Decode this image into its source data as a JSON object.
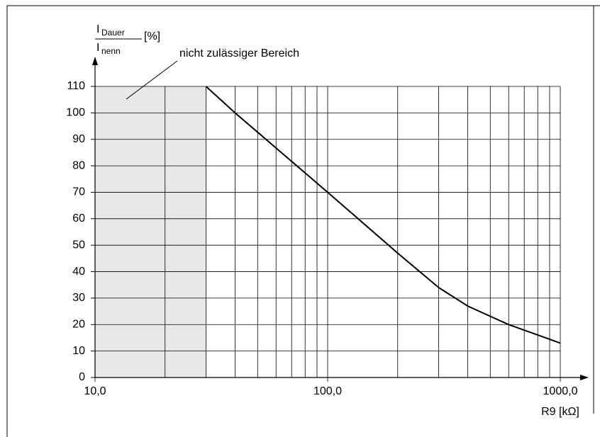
{
  "chart_data": {
    "type": "line",
    "y_label": {
      "numerator": "I",
      "numerator_sub": "Dauer",
      "denominator": "I",
      "denominator_sub": "nenn",
      "unit": "[%]"
    },
    "x_label": "R9 [kΩ]",
    "annotation": "nicht zulässiger Bereich",
    "shaded_region": [
      10,
      30
    ],
    "x_log": true,
    "grid": true,
    "xlim": [
      10,
      1000
    ],
    "ylim": [
      0,
      110
    ],
    "xticks": [
      {
        "value": 10,
        "label": "10,0"
      },
      {
        "value": 100,
        "label": "100,0"
      },
      {
        "value": 1000,
        "label": "1000,0"
      }
    ],
    "xminor": [
      20,
      30,
      40,
      50,
      60,
      70,
      80,
      90,
      200,
      300,
      400,
      500,
      600,
      700,
      800,
      900
    ],
    "yticks": [
      0,
      10,
      20,
      30,
      40,
      50,
      60,
      70,
      80,
      90,
      100,
      110
    ],
    "series": [
      {
        "color": "#000000",
        "x": [
          30,
          40,
          100,
          200,
          300,
          400,
          600,
          1000
        ],
        "values": [
          110,
          100,
          70,
          47,
          34,
          27,
          20,
          13
        ]
      }
    ]
  }
}
